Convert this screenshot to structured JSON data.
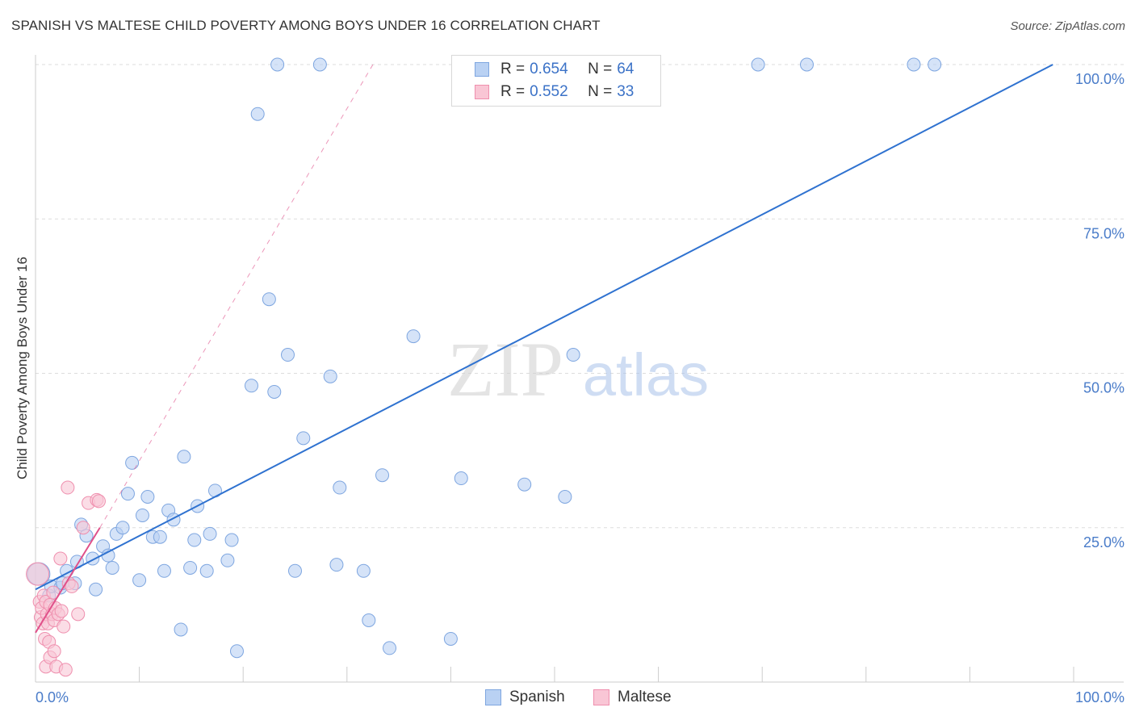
{
  "title": "SPANISH VS MALTESE CHILD POVERTY AMONG BOYS UNDER 16 CORRELATION CHART",
  "source": "Source: ZipAtlas.com",
  "watermark": {
    "zip": "ZIP",
    "atlas": "atlas"
  },
  "colors": {
    "spanish_fill": "#b9d1f3",
    "spanish_stroke": "#7ea6e0",
    "spanish_line": "#2f72d0",
    "maltese_fill": "#f9c6d5",
    "maltese_stroke": "#ef8fae",
    "maltese_line": "#e0508a",
    "grid": "#dddddd",
    "tick_label": "#4a7cc9"
  },
  "legend": {
    "spanish": {
      "r_label": "R =",
      "r_value": "0.654",
      "n_label": "N =",
      "n_value": "64"
    },
    "maltese": {
      "r_label": "R =",
      "r_value": "0.552",
      "n_label": "N =",
      "n_value": "33"
    }
  },
  "chart_data": {
    "type": "scatter",
    "title": "SPANISH VS MALTESE CHILD POVERTY AMONG BOYS UNDER 16 CORRELATION CHART",
    "xlabel": "",
    "ylabel": "Child Poverty Among Boys Under 16",
    "xlim": [
      0,
      100
    ],
    "ylim": [
      0,
      100
    ],
    "x_tick_labels": [
      "0.0%",
      "100.0%"
    ],
    "y_ticks": [
      25,
      50,
      75,
      100
    ],
    "y_tick_labels": [
      "25.0%",
      "50.0%",
      "75.0%",
      "100.0%"
    ],
    "grid": true,
    "legend_position": "top-center",
    "series": [
      {
        "name": "Spanish",
        "points": [
          [
            0.3,
            17.5
          ],
          [
            1.3,
            14.0
          ],
          [
            1.5,
            15.5
          ],
          [
            2.4,
            15.3
          ],
          [
            2.6,
            16.0
          ],
          [
            3.0,
            18.0
          ],
          [
            3.8,
            16.0
          ],
          [
            4.0,
            19.5
          ],
          [
            4.4,
            25.5
          ],
          [
            4.9,
            23.7
          ],
          [
            5.5,
            20.0
          ],
          [
            5.8,
            15.0
          ],
          [
            6.5,
            22.0
          ],
          [
            7.0,
            20.5
          ],
          [
            7.4,
            18.5
          ],
          [
            7.8,
            24.0
          ],
          [
            8.4,
            25.0
          ],
          [
            8.9,
            30.5
          ],
          [
            9.3,
            35.5
          ],
          [
            10.0,
            16.5
          ],
          [
            10.3,
            27.0
          ],
          [
            10.8,
            30.0
          ],
          [
            11.3,
            23.5
          ],
          [
            12.0,
            23.5
          ],
          [
            12.4,
            18.0
          ],
          [
            12.8,
            27.8
          ],
          [
            13.3,
            26.3
          ],
          [
            14.0,
            8.5
          ],
          [
            14.3,
            36.5
          ],
          [
            14.9,
            18.5
          ],
          [
            15.3,
            23.0
          ],
          [
            15.6,
            28.5
          ],
          [
            16.5,
            18.0
          ],
          [
            16.8,
            24.0
          ],
          [
            17.3,
            31.0
          ],
          [
            18.5,
            19.7
          ],
          [
            18.9,
            23.0
          ],
          [
            19.4,
            5.0
          ],
          [
            20.8,
            48.0
          ],
          [
            21.4,
            92.0
          ],
          [
            22.5,
            62.0
          ],
          [
            23.0,
            47.0
          ],
          [
            23.3,
            100.0
          ],
          [
            24.3,
            53.0
          ],
          [
            25.0,
            18.0
          ],
          [
            25.8,
            39.5
          ],
          [
            27.4,
            100.0
          ],
          [
            28.4,
            49.5
          ],
          [
            29.0,
            19.0
          ],
          [
            29.3,
            31.5
          ],
          [
            31.6,
            18.0
          ],
          [
            32.1,
            10.0
          ],
          [
            33.4,
            33.5
          ],
          [
            34.1,
            5.5
          ],
          [
            36.4,
            56.0
          ],
          [
            40.0,
            7.0
          ],
          [
            41.0,
            33.0
          ],
          [
            47.1,
            32.0
          ],
          [
            51.0,
            30.0
          ],
          [
            51.8,
            53.0
          ],
          [
            69.6,
            100.0
          ],
          [
            74.3,
            100.0
          ],
          [
            84.6,
            100.0
          ],
          [
            86.6,
            100.0
          ]
        ]
      },
      {
        "name": "Maltese",
        "points": [
          [
            0.2,
            17.5
          ],
          [
            0.4,
            13.0
          ],
          [
            0.5,
            10.5
          ],
          [
            0.6,
            12.0
          ],
          [
            0.7,
            9.5
          ],
          [
            0.8,
            14.0
          ],
          [
            0.9,
            7.0
          ],
          [
            1.0,
            13.0
          ],
          [
            1.0,
            2.5
          ],
          [
            1.1,
            11.0
          ],
          [
            1.2,
            9.5
          ],
          [
            1.3,
            6.5
          ],
          [
            1.4,
            12.5
          ],
          [
            1.4,
            4.0
          ],
          [
            1.6,
            11.0
          ],
          [
            1.7,
            14.5
          ],
          [
            1.8,
            5.0
          ],
          [
            1.8,
            10.0
          ],
          [
            1.9,
            12.0
          ],
          [
            2.0,
            2.5
          ],
          [
            2.2,
            11.0
          ],
          [
            2.4,
            20.0
          ],
          [
            2.5,
            11.5
          ],
          [
            2.7,
            9.0
          ],
          [
            2.9,
            2.0
          ],
          [
            3.1,
            31.5
          ],
          [
            3.2,
            16.0
          ],
          [
            3.5,
            15.5
          ],
          [
            4.1,
            11.0
          ],
          [
            4.6,
            25.0
          ],
          [
            5.1,
            29.0
          ],
          [
            5.9,
            29.5
          ],
          [
            6.1,
            29.3
          ]
        ]
      }
    ],
    "trendlines": [
      {
        "series": "Spanish",
        "from": [
          0,
          15.0
        ],
        "to": [
          98,
          100
        ],
        "style": "solid"
      },
      {
        "series": "Maltese",
        "from": [
          0,
          8.0
        ],
        "to": [
          6.2,
          25.0
        ],
        "style": "solid"
      },
      {
        "series": "Maltese",
        "from": [
          6.2,
          25.0
        ],
        "to": [
          32.5,
          100
        ],
        "style": "dashed"
      }
    ]
  }
}
